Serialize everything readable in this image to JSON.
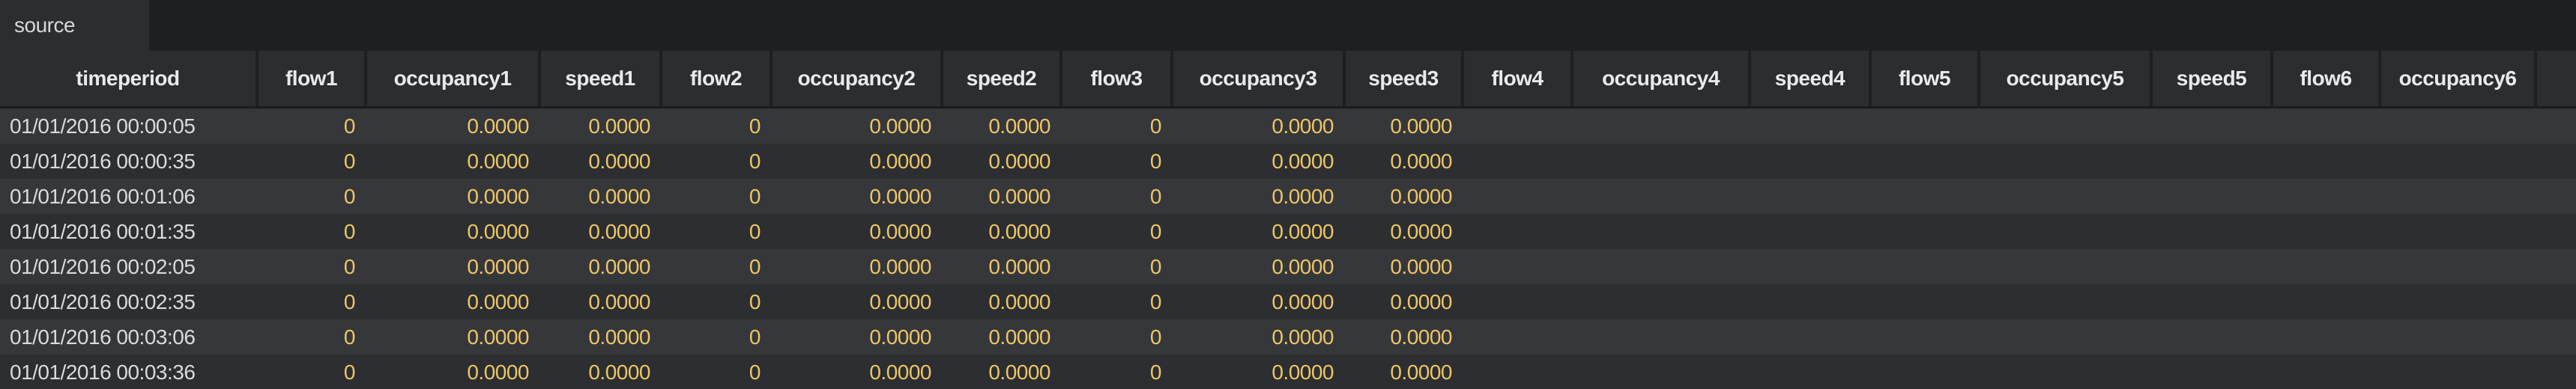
{
  "tab": {
    "label": "source"
  },
  "table": {
    "columns": [
      {
        "key": "timeperiod",
        "label": "timeperiod",
        "type": "text"
      },
      {
        "key": "flow1",
        "label": "flow1",
        "type": "number"
      },
      {
        "key": "occupancy1",
        "label": "occupancy1",
        "type": "number"
      },
      {
        "key": "speed1",
        "label": "speed1",
        "type": "number"
      },
      {
        "key": "flow2",
        "label": "flow2",
        "type": "number"
      },
      {
        "key": "occupancy2",
        "label": "occupancy2",
        "type": "number"
      },
      {
        "key": "speed2",
        "label": "speed2",
        "type": "number"
      },
      {
        "key": "flow3",
        "label": "flow3",
        "type": "number"
      },
      {
        "key": "occupancy3",
        "label": "occupancy3",
        "type": "number"
      },
      {
        "key": "speed3",
        "label": "speed3",
        "type": "number"
      },
      {
        "key": "flow4",
        "label": "flow4",
        "type": "number"
      },
      {
        "key": "occupancy4",
        "label": "occupancy4",
        "type": "number"
      },
      {
        "key": "speed4",
        "label": "speed4",
        "type": "number"
      },
      {
        "key": "flow5",
        "label": "flow5",
        "type": "number"
      },
      {
        "key": "occupancy5",
        "label": "occupancy5",
        "type": "number"
      },
      {
        "key": "speed5",
        "label": "speed5",
        "type": "number"
      },
      {
        "key": "flow6",
        "label": "flow6",
        "type": "number"
      },
      {
        "key": "occupancy6",
        "label": "occupancy6",
        "type": "number"
      },
      {
        "key": "clipped",
        "label": "",
        "type": "number"
      }
    ],
    "rows": [
      [
        "01/01/2016 00:00:05",
        "0",
        "0.0000",
        "0.0000",
        "0",
        "0.0000",
        "0.0000",
        "0",
        "0.0000",
        "0.0000",
        "",
        "",
        "",
        "",
        "",
        "",
        "",
        "",
        ""
      ],
      [
        "01/01/2016 00:00:35",
        "0",
        "0.0000",
        "0.0000",
        "0",
        "0.0000",
        "0.0000",
        "0",
        "0.0000",
        "0.0000",
        "",
        "",
        "",
        "",
        "",
        "",
        "",
        "",
        ""
      ],
      [
        "01/01/2016 00:01:06",
        "0",
        "0.0000",
        "0.0000",
        "0",
        "0.0000",
        "0.0000",
        "0",
        "0.0000",
        "0.0000",
        "",
        "",
        "",
        "",
        "",
        "",
        "",
        "",
        ""
      ],
      [
        "01/01/2016 00:01:35",
        "0",
        "0.0000",
        "0.0000",
        "0",
        "0.0000",
        "0.0000",
        "0",
        "0.0000",
        "0.0000",
        "",
        "",
        "",
        "",
        "",
        "",
        "",
        "",
        ""
      ],
      [
        "01/01/2016 00:02:05",
        "0",
        "0.0000",
        "0.0000",
        "0",
        "0.0000",
        "0.0000",
        "0",
        "0.0000",
        "0.0000",
        "",
        "",
        "",
        "",
        "",
        "",
        "",
        "",
        ""
      ],
      [
        "01/01/2016 00:02:35",
        "0",
        "0.0000",
        "0.0000",
        "0",
        "0.0000",
        "0.0000",
        "0",
        "0.0000",
        "0.0000",
        "",
        "",
        "",
        "",
        "",
        "",
        "",
        "",
        ""
      ],
      [
        "01/01/2016 00:03:06",
        "0",
        "0.0000",
        "0.0000",
        "0",
        "0.0000",
        "0.0000",
        "0",
        "0.0000",
        "0.0000",
        "",
        "",
        "",
        "",
        "",
        "",
        "",
        "",
        ""
      ],
      [
        "01/01/2016 00:03:36",
        "0",
        "0.0000",
        "0.0000",
        "0",
        "0.0000",
        "0.0000",
        "0",
        "0.0000",
        "0.0000",
        "",
        "",
        "",
        "",
        "",
        "",
        "",
        "",
        ""
      ]
    ]
  },
  "colors": {
    "background": "#1e1f22",
    "panel": "#2b2d30",
    "row_light": "#36373b",
    "row_dark": "#2c2e31",
    "header_line": "#1a1b1e",
    "header_text": "#e8eaec",
    "primary_text": "#d8dadc",
    "number_text": "#ecc666"
  }
}
